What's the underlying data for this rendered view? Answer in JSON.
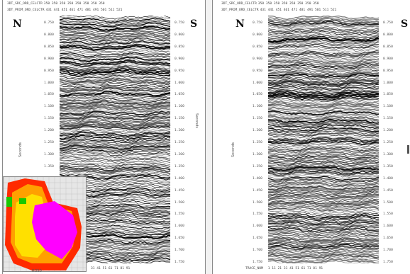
{
  "panels": [
    {
      "id": "left",
      "header": {
        "row1_label": "3DT_SRC_ORD_CELCTR",
        "row1_values": [
          "350",
          "350",
          "350",
          "350",
          "350",
          "350",
          "350",
          "350"
        ],
        "row2_label": "3DT_PRIM_ORD_CELCTR",
        "row2_values": [
          "431",
          "441",
          "451",
          "461",
          "471",
          "481",
          "491",
          "501",
          "511",
          "521"
        ]
      },
      "left_direction": "N",
      "right_direction": "S",
      "time_ticks": [
        "0.750",
        "0.800",
        "0.850",
        "0.900",
        "0.950",
        "1.000",
        "1.050",
        "1.100",
        "1.150",
        "1.200",
        "1.250",
        "1.300",
        "1.350",
        "1.400",
        "1.450",
        "1.500",
        "1.550",
        "1.600",
        "1.650",
        "1.700",
        "1.750"
      ],
      "left_axis_title": "Seconds",
      "right_axis_title": "Seconds",
      "bottom_axis": {
        "label": "",
        "values": [
          "31",
          "41",
          "51",
          "61",
          "71",
          "81",
          "91"
        ]
      }
    },
    {
      "id": "right",
      "header": {
        "row1_label": "3DT_SRC_ORD_CELCTR",
        "row1_values": [
          "350",
          "350",
          "350",
          "350",
          "350",
          "350",
          "350",
          "350"
        ],
        "row2_label": "3DT_PRIM_ORD_CELCTR",
        "row2_values": [
          "431",
          "441",
          "451",
          "461",
          "471",
          "481",
          "491",
          "501",
          "511",
          "521"
        ]
      },
      "left_direction": "N",
      "right_direction": "S",
      "time_ticks": [
        "0.750",
        "0.800",
        "0.850",
        "0.900",
        "0.950",
        "1.000",
        "1.050",
        "1.100",
        "1.150",
        "1.200",
        "1.250",
        "1.300",
        "1.350",
        "1.400",
        "1.450",
        "1.500",
        "1.550",
        "1.600",
        "1.650",
        "1.700",
        "1.750"
      ],
      "left_axis_title": "Seconds",
      "right_axis_title": "",
      "bottom_axis": {
        "label": "TRACE_NUM",
        "values": [
          "1",
          "11",
          "21",
          "31",
          "41",
          "51",
          "61",
          "71",
          "81",
          "91"
        ]
      }
    }
  ],
  "inset_map": {
    "label": "ROS0",
    "colors": {
      "background": "#e6e6e6",
      "outer": "#ff2a00",
      "mid": "#ffa000",
      "inner": "#ffe000",
      "survey": "#ff00ff",
      "green": "#19c800",
      "grid": "#bdbdbd"
    }
  },
  "colors": {
    "seismic": "#000000",
    "paper": "#ffffff",
    "frame": "#8a8a8a"
  }
}
